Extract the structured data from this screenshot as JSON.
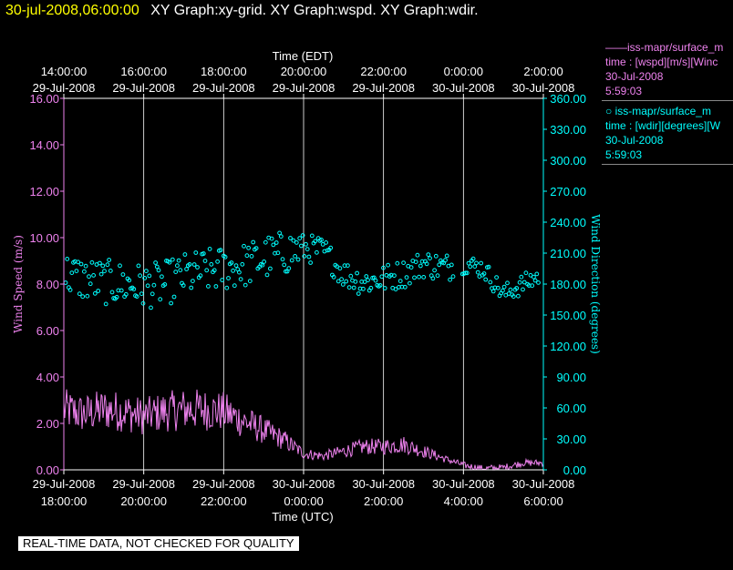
{
  "header": {
    "timestamp": "30-jul-2008,06:00:00",
    "graph_titles": "XY Graph:xy-grid.  XY Graph:wspd.  XY Graph:wdir."
  },
  "legend": {
    "entries": [
      {
        "label": "——iss-mapr/surface_m",
        "line2": "time : [wspd][m/s][Winc",
        "line3": "30-Jul-2008",
        "line4": "5:59:03",
        "color": "#ee82ee"
      },
      {
        "label": "○ iss-mapr/surface_m",
        "line2": "time : [wdir][degrees][W",
        "line3": "30-Jul-2008",
        "line4": "5:59:03",
        "color": "#00ffff"
      }
    ]
  },
  "footer": {
    "quality_note": "REAL-TIME DATA, NOT CHECKED FOR QUALITY"
  },
  "chart_data": {
    "type": "line",
    "top_axis": {
      "label": "Time (EDT)",
      "ticks": [
        {
          "time": "14:00:00",
          "date": "29-Jul-2008"
        },
        {
          "time": "16:00:00",
          "date": "29-Jul-2008"
        },
        {
          "time": "18:00:00",
          "date": "29-Jul-2008"
        },
        {
          "time": "20:00:00",
          "date": "29-Jul-2008"
        },
        {
          "time": "22:00:00",
          "date": "29-Jul-2008"
        },
        {
          "time": "0:00:00",
          "date": "30-Jul-2008"
        },
        {
          "time": "2:00:00",
          "date": "30-Jul-2008"
        }
      ]
    },
    "bottom_axis": {
      "label": "Time (UTC)",
      "ticks": [
        {
          "date": "29-Jul-2008",
          "time": "18:00:00"
        },
        {
          "date": "29-Jul-2008",
          "time": "20:00:00"
        },
        {
          "date": "29-Jul-2008",
          "time": "22:00:00"
        },
        {
          "date": "30-Jul-2008",
          "time": "0:00:00"
        },
        {
          "date": "30-Jul-2008",
          "time": "2:00:00"
        },
        {
          "date": "30-Jul-2008",
          "time": "4:00:00"
        },
        {
          "date": "30-Jul-2008",
          "time": "6:00:00"
        }
      ]
    },
    "xlim_utc": [
      "2008-07-29 18:00",
      "2008-07-30 06:00"
    ],
    "grid": "vertical",
    "left_axis": {
      "label": "Wind Speed (m/s)",
      "ylim": [
        0,
        16
      ],
      "ticks": [
        "0.00",
        "2.00",
        "4.00",
        "6.00",
        "8.00",
        "10.00",
        "12.00",
        "14.00",
        "16.00"
      ],
      "color": "#ee82ee"
    },
    "right_axis": {
      "label": "Wind Direction (degrees)",
      "ylim": [
        0,
        360
      ],
      "ticks": [
        "0.00",
        "30.00",
        "60.00",
        "90.00",
        "120.00",
        "150.00",
        "180.00",
        "210.00",
        "240.00",
        "270.00",
        "300.00",
        "330.00",
        "360.00"
      ],
      "color": "#00ffff"
    },
    "series": [
      {
        "kind": "line",
        "axis": "left",
        "color": "#ee82ee",
        "x": [
          "2008-07-29 18:00",
          "2008-07-29 18:30",
          "2008-07-29 19:00",
          "2008-07-29 19:30",
          "2008-07-29 20:00",
          "2008-07-29 20:30",
          "2008-07-29 21:00",
          "2008-07-29 21:30",
          "2008-07-29 22:00",
          "2008-07-29 22:30",
          "2008-07-29 23:00",
          "2008-07-29 23:30",
          "2008-07-30 00:00",
          "2008-07-30 00:30",
          "2008-07-30 01:00",
          "2008-07-30 01:30",
          "2008-07-30 02:00",
          "2008-07-30 02:30",
          "2008-07-30 03:00",
          "2008-07-30 03:30",
          "2008-07-30 04:00",
          "2008-07-30 04:30",
          "2008-07-30 05:00",
          "2008-07-30 05:30",
          "2008-07-30 06:00"
        ],
        "y": [
          2.6,
          2.4,
          2.6,
          2.5,
          2.3,
          2.5,
          2.6,
          2.6,
          2.5,
          2.1,
          1.7,
          1.3,
          0.7,
          0.6,
          0.8,
          1.0,
          1.0,
          1.1,
          0.8,
          0.5,
          0.2,
          0.05,
          0.1,
          0.3,
          0.3
        ]
      },
      {
        "kind": "scatter",
        "axis": "right",
        "color": "#00ffff",
        "x": [
          "2008-07-29 18:00",
          "2008-07-29 18:30",
          "2008-07-29 19:00",
          "2008-07-29 19:30",
          "2008-07-29 20:00",
          "2008-07-29 20:30",
          "2008-07-29 21:00",
          "2008-07-29 21:30",
          "2008-07-29 22:00",
          "2008-07-29 22:30",
          "2008-07-29 23:00",
          "2008-07-29 23:30",
          "2008-07-30 00:00",
          "2008-07-30 00:30",
          "2008-07-30 01:00",
          "2008-07-30 01:30",
          "2008-07-30 02:00",
          "2008-07-30 02:30",
          "2008-07-30 03:00",
          "2008-07-30 03:30",
          "2008-07-30 04:00",
          "2008-07-30 04:30",
          "2008-07-30 05:00",
          "2008-07-30 05:30",
          "2008-07-30 06:00"
        ],
        "y": [
          190,
          185,
          182,
          180,
          178,
          180,
          188,
          192,
          195,
          198,
          205,
          210,
          215,
          212,
          190,
          182,
          185,
          190,
          200,
          196,
          200,
          195,
          170,
          180,
          190
        ]
      }
    ]
  }
}
